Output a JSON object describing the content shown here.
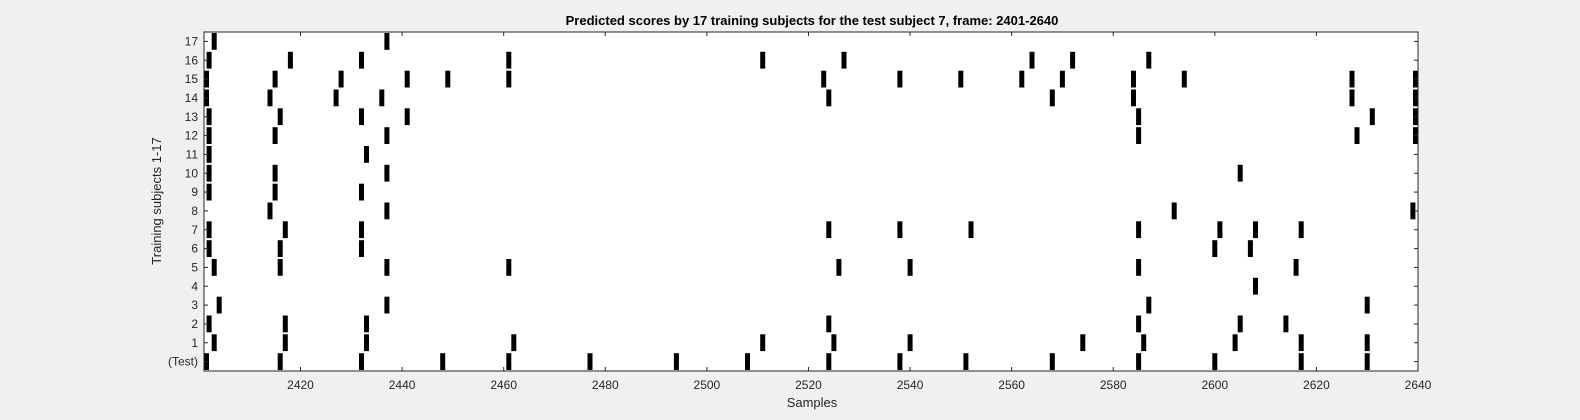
{
  "chart_data": {
    "type": "raster",
    "title": "Predicted scores by 17 training subjects for the test subject 7, frame: 2401-2640",
    "xlabel": "Samples",
    "ylabel": "Training subjects 1-17",
    "xlim": [
      2401,
      2640
    ],
    "xticks": [
      2420,
      2440,
      2460,
      2480,
      2500,
      2520,
      2540,
      2560,
      2580,
      2600,
      2620,
      2640
    ],
    "row_labels": [
      "(Test)",
      "1",
      "2",
      "3",
      "4",
      "5",
      "6",
      "7",
      "8",
      "9",
      "10",
      "11",
      "12",
      "13",
      "14",
      "15",
      "16",
      "17"
    ],
    "event_width_samples": 1,
    "grid": false,
    "rows": [
      {
        "label": "(Test)",
        "events": [
          2401,
          2416,
          2432,
          2448,
          2461,
          2477,
          2494,
          2508,
          2524,
          2538,
          2551,
          2568,
          2585,
          2600,
          2617,
          2630
        ]
      },
      {
        "label": "1",
        "events": [
          2403,
          2417,
          2433,
          2462,
          2511,
          2525,
          2540,
          2574,
          2586,
          2604,
          2617,
          2630
        ]
      },
      {
        "label": "2",
        "events": [
          2402,
          2417,
          2433,
          2524,
          2585,
          2605,
          2614
        ]
      },
      {
        "label": "3",
        "events": [
          2404,
          2437,
          2587,
          2630
        ]
      },
      {
        "label": "4",
        "events": [
          2608
        ]
      },
      {
        "label": "5",
        "events": [
          2403,
          2416,
          2437,
          2461,
          2526,
          2540,
          2585,
          2616
        ]
      },
      {
        "label": "6",
        "events": [
          2402,
          2416,
          2432,
          2600,
          2607
        ]
      },
      {
        "label": "7",
        "events": [
          2402,
          2417,
          2432,
          2524,
          2538,
          2552,
          2585,
          2601,
          2608,
          2617
        ]
      },
      {
        "label": "8",
        "events": [
          2414,
          2437,
          2592,
          2639
        ]
      },
      {
        "label": "9",
        "events": [
          2402,
          2415,
          2432
        ]
      },
      {
        "label": "10",
        "events": [
          2402,
          2415,
          2437,
          2605
        ]
      },
      {
        "label": "11",
        "events": [
          2402,
          2433
        ]
      },
      {
        "label": "12",
        "events": [
          2402,
          2415,
          2437,
          2585,
          2628,
          2640
        ]
      },
      {
        "label": "13",
        "events": [
          2402,
          2416,
          2432,
          2441,
          2585,
          2631,
          2640
        ]
      },
      {
        "label": "14",
        "events": [
          2401,
          2414,
          2427,
          2436,
          2524,
          2568,
          2584,
          2627,
          2640
        ]
      },
      {
        "label": "15",
        "events": [
          2401,
          2415,
          2428,
          2441,
          2449,
          2461,
          2523,
          2538,
          2550,
          2562,
          2570,
          2584,
          2594,
          2627,
          2640
        ]
      },
      {
        "label": "16",
        "events": [
          2402,
          2418,
          2432,
          2461,
          2511,
          2527,
          2564,
          2572,
          2587
        ]
      },
      {
        "label": "17",
        "events": [
          2403,
          2437
        ]
      }
    ]
  }
}
